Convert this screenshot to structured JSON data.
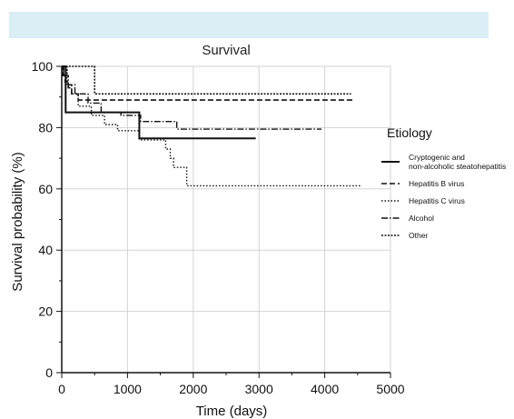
{
  "header_band_color": "#dbeef6",
  "chart_data": {
    "type": "line",
    "step": true,
    "title": "Survival",
    "xlabel": "Time (days)",
    "ylabel": "Survival probability (%)",
    "xlim": [
      0,
      5000
    ],
    "ylim": [
      0,
      100
    ],
    "x_ticks": [
      0,
      1000,
      2000,
      3000,
      4000,
      5000
    ],
    "y_ticks": [
      0,
      20,
      40,
      60,
      80,
      100
    ],
    "grid": true,
    "legend_title": "Etiology",
    "legend_position": "right",
    "series": [
      {
        "name": "Cryptogenic and\nnon-alcoholic steatohepatitis",
        "dash": "solid",
        "x": [
          0,
          60,
          60,
          1180,
          1180,
          2950
        ],
        "y": [
          100,
          100,
          85,
          85,
          76.5,
          76.5
        ]
      },
      {
        "name": "Hepatitis B virus",
        "dash": "dashed",
        "x": [
          0,
          20,
          20,
          50,
          50,
          100,
          100,
          150,
          150,
          250,
          250,
          4450
        ],
        "y": [
          100,
          100,
          97,
          97,
          95,
          95,
          93,
          93,
          91,
          91,
          89,
          89
        ]
      },
      {
        "name": "Hepatitis C virus",
        "dash": "dotted",
        "x": [
          0,
          30,
          30,
          80,
          80,
          150,
          150,
          250,
          250,
          450,
          450,
          650,
          650,
          850,
          850,
          1180,
          1180,
          1580,
          1580,
          1650,
          1650,
          1700,
          1700,
          1900,
          1900,
          4550
        ],
        "y": [
          100,
          100,
          97,
          97,
          94,
          94,
          91,
          91,
          87,
          87,
          84,
          84,
          81,
          81,
          79,
          79,
          76,
          76,
          73,
          73,
          70,
          70,
          67,
          67,
          61,
          61
        ]
      },
      {
        "name": "Alcohol",
        "dash": "dashdot",
        "x": [
          0,
          30,
          30,
          100,
          100,
          200,
          200,
          400,
          400,
          600,
          600,
          900,
          900,
          1200,
          1200,
          1750,
          1750,
          3950
        ],
        "y": [
          100,
          100,
          97,
          97,
          94,
          94,
          91,
          91,
          88,
          88,
          85,
          85,
          84,
          84,
          82,
          82,
          79.5,
          79.5
        ]
      },
      {
        "name": "Other",
        "dash": "dense-dot",
        "x": [
          0,
          20,
          20,
          80,
          80,
          500,
          500,
          4400
        ],
        "y": [
          100,
          100,
          97,
          97,
          100,
          100,
          91,
          91
        ]
      }
    ]
  }
}
